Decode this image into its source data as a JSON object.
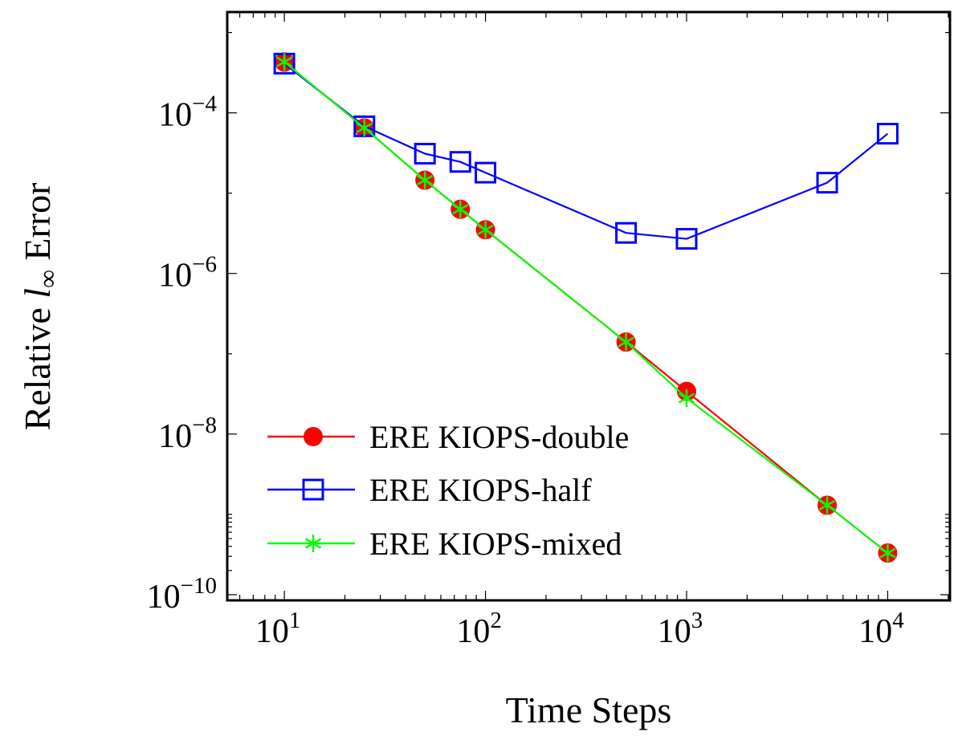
{
  "chart_data": {
    "type": "line",
    "title": "",
    "xlabel": "Time Steps",
    "ylabel_prefix": "Relative ",
    "ylabel_symbol": "l",
    "ylabel_sub": "∞",
    "ylabel_suffix": " Error",
    "xscale": "log",
    "yscale": "log",
    "xlim": [
      5.2,
      20400
    ],
    "ylim": [
      8.5e-11,
      0.0018
    ],
    "grid": false,
    "legend_position": "bottom-left",
    "x_ticks": [
      {
        "value": 10,
        "base": "10",
        "exp": "1"
      },
      {
        "value": 100,
        "base": "10",
        "exp": "2"
      },
      {
        "value": 1000,
        "base": "10",
        "exp": "3"
      },
      {
        "value": 10000,
        "base": "10",
        "exp": "4"
      }
    ],
    "y_ticks": [
      {
        "value": 0.0001,
        "base": "10",
        "exp": "−4"
      },
      {
        "value": 1e-06,
        "base": "10",
        "exp": "−6"
      },
      {
        "value": 1e-08,
        "base": "10",
        "exp": "−8"
      },
      {
        "value": 1e-10,
        "base": "10",
        "exp": "−10"
      }
    ],
    "x": [
      10,
      25,
      50,
      75,
      100,
      500,
      1000,
      5000,
      10000
    ],
    "series": [
      {
        "name": "ERE KIOPS-double",
        "color": "#ff0000",
        "marker": "filled-circle",
        "values": [
          0.00043,
          6.5e-05,
          1.45e-05,
          6.3e-06,
          3.5e-06,
          1.4e-07,
          3.4e-08,
          1.3e-09,
          3.3e-10
        ]
      },
      {
        "name": "ERE KIOPS-half",
        "color": "#0000ff",
        "marker": "open-square",
        "values": [
          0.00041,
          6.8e-05,
          3.1e-05,
          2.45e-05,
          1.8e-05,
          3.2e-06,
          2.7e-06,
          1.35e-05,
          5.5e-05
        ]
      },
      {
        "name": "ERE KIOPS-mixed",
        "color": "#00ff00",
        "marker": "asterisk",
        "values": [
          0.00043,
          6.5e-05,
          1.45e-05,
          6.3e-06,
          3.5e-06,
          1.4e-07,
          2.8e-08,
          1.3e-09,
          3.3e-10
        ]
      }
    ]
  }
}
